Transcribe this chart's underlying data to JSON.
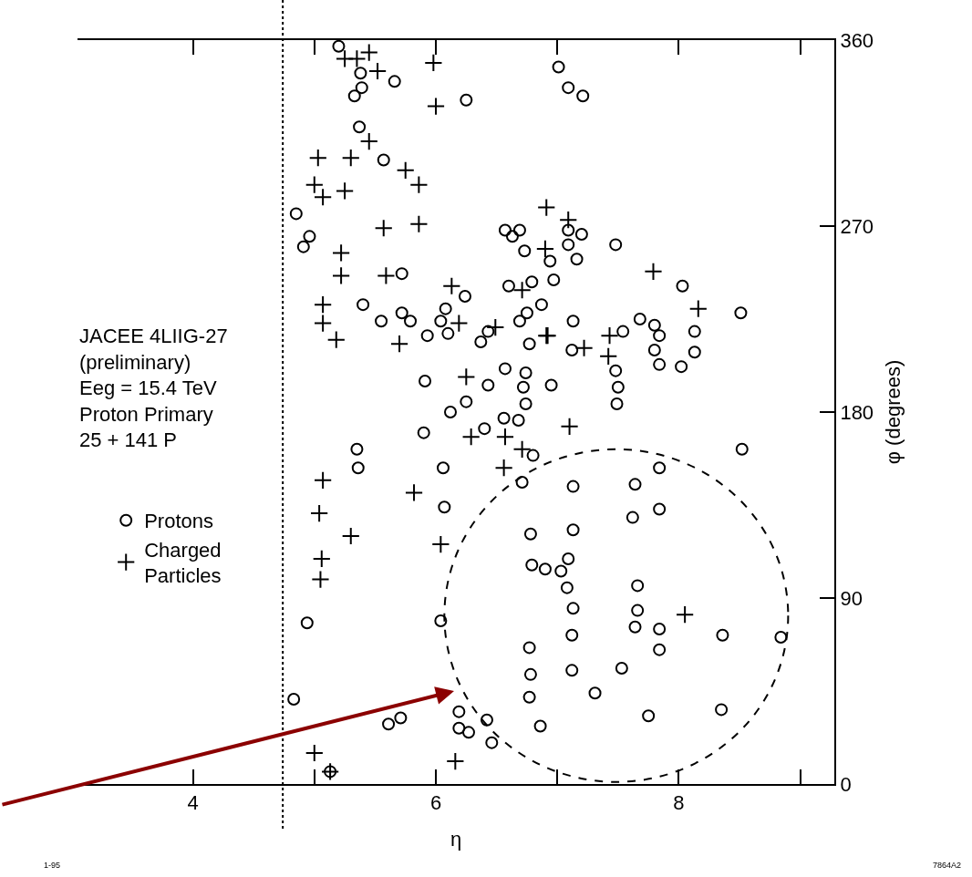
{
  "chart_data": {
    "type": "scatter",
    "xlabel": "η",
    "ylabel": "φ (degrees)",
    "annotations": [
      "JACEE 4LIIG-27\n(preliminary)\nEeg = 15.4 TeV\nProton Primary\n25 + 141 P",
      "1-95",
      "7864A2"
    ],
    "xlim": [
      3.05,
      9.28
    ],
    "ylim": [
      0,
      360
    ],
    "xticks": [
      4,
      {
        "value": 5,
        "label": null
      },
      6,
      {
        "value": 7,
        "label": null
      },
      8,
      {
        "value": 9,
        "label": null
      }
    ],
    "yticks": [
      0,
      90,
      180,
      270,
      360
    ],
    "legend": "left",
    "ref_lines": [
      {
        "axis": "x",
        "value": 4.74,
        "color": "#000000",
        "line_style": "dotted"
      }
    ],
    "series": [
      {
        "name": "Protons",
        "color": "#000000",
        "marker": "circle",
        "x": [
          5.2,
          5.38,
          5.39,
          5.33,
          5.66,
          6.25,
          5.37,
          5.57,
          7.01,
          7.09,
          7.21,
          4.85,
          4.96,
          4.91,
          5.72,
          6.57,
          6.69,
          6.63,
          6.73,
          6.94,
          7.09,
          7.2,
          7.09,
          7.16,
          7.48,
          6.6,
          6.79,
          6.97,
          6.24,
          5.4,
          5.55,
          5.72,
          5.79,
          5.93,
          6.08,
          6.04,
          6.1,
          6.37,
          6.43,
          6.69,
          6.75,
          6.87,
          6.77,
          7.13,
          7.12,
          6.95,
          8.03,
          8.51,
          7.68,
          7.8,
          7.84,
          7.8,
          7.84,
          8.02,
          8.13,
          8.13,
          7.54,
          7.48,
          7.5,
          7.49,
          8.52,
          5.91,
          6.43,
          6.57,
          6.74,
          6.72,
          6.74,
          6.25,
          6.12,
          6.68,
          6.56,
          6.4,
          5.9,
          5.35,
          5.36,
          6.06,
          6.8,
          6.71,
          7.13,
          7.64,
          7.84,
          7.84,
          7.62,
          7.13,
          6.07,
          6.78,
          6.79,
          6.9,
          7.09,
          7.03,
          7.08,
          7.13,
          7.12,
          7.12,
          7.66,
          7.66,
          7.64,
          7.84,
          7.84,
          7.53,
          7.31,
          7.75,
          8.35,
          8.36,
          8.84,
          6.77,
          6.78,
          6.77,
          6.86,
          4.94,
          6.04,
          4.83,
          5.61,
          5.71,
          6.19,
          6.19,
          6.27,
          6.42,
          6.46,
          5.13
        ],
        "values": [
          357,
          344,
          337,
          333,
          340,
          331,
          318,
          302,
          347,
          337,
          333,
          276,
          265,
          260,
          247,
          268,
          268,
          265,
          258,
          253,
          268,
          266,
          261,
          254,
          261,
          241,
          243,
          244,
          236,
          232,
          224,
          228,
          224,
          217,
          230,
          224,
          218,
          214,
          219,
          224,
          228,
          232,
          213,
          224,
          210,
          193,
          241,
          228,
          225,
          222,
          217,
          210,
          203,
          202,
          219,
          209,
          219,
          200,
          192,
          184,
          162,
          195,
          193,
          201,
          199,
          192,
          184,
          185,
          180,
          176,
          177,
          172,
          170,
          162,
          153,
          153,
          159,
          146,
          144,
          145,
          153,
          133,
          129,
          123,
          134,
          121,
          106,
          104,
          109,
          103,
          95,
          85,
          72,
          55,
          96,
          84,
          76,
          75,
          65,
          56,
          44,
          33,
          36,
          72,
          71,
          66,
          53,
          42,
          28,
          78,
          79,
          41,
          29,
          32,
          35,
          27,
          25,
          31,
          20,
          6
        ]
      },
      {
        "name": "Charged\nParticles",
        "color": "#000000",
        "marker": "cross",
        "x": [
          5.25,
          5.35,
          5.45,
          5.52,
          5.98,
          6.0,
          5.45,
          5.03,
          5.3,
          5.75,
          5.86,
          5.0,
          5.07,
          5.25,
          5.57,
          5.86,
          5.22,
          5.22,
          5.59,
          6.13,
          6.91,
          7.09,
          6.9,
          7.79,
          6.71,
          5.07,
          5.07,
          5.18,
          5.7,
          6.19,
          6.49,
          6.91,
          6.25,
          6.29,
          6.57,
          6.71,
          6.56,
          5.07,
          5.82,
          5.04,
          5.3,
          8.16,
          6.92,
          7.43,
          7.22,
          7.42,
          7.1,
          5.06,
          5.05,
          6.04,
          5.0,
          6.16,
          8.05,
          5.13
        ],
        "values": [
          351,
          351,
          354,
          345,
          349,
          328,
          311,
          303,
          303,
          297,
          290,
          290,
          284,
          287,
          269,
          271,
          257,
          246,
          246,
          241,
          279,
          273,
          259,
          248,
          239,
          232,
          223,
          215,
          213,
          223,
          221,
          217,
          197,
          168,
          168,
          162,
          153,
          147,
          141,
          131,
          120,
          230,
          217,
          217,
          211,
          207,
          173,
          109,
          99,
          116,
          15,
          11,
          82,
          6
        ]
      }
    ]
  }
}
